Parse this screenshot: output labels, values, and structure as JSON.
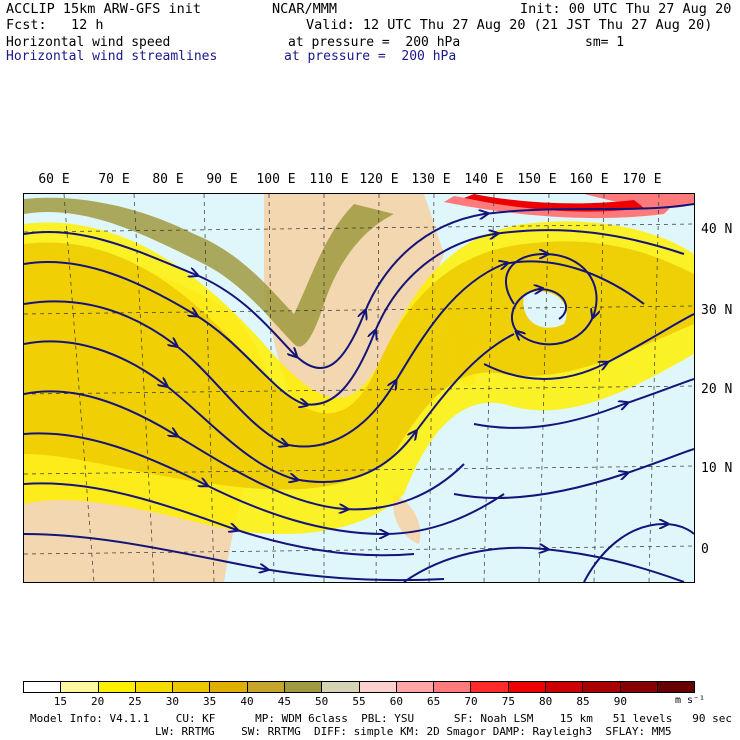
{
  "header": {
    "line1_left": "ACCLIP 15km ARW-GFS init",
    "line1_mid": "NCAR/MMM",
    "line1_right": "Init: 00 UTC Thu 27 Aug 20",
    "line2_left": "Fcst:   12 h",
    "line2_right": "Valid: 12 UTC Thu 27 Aug 20 (21 JST Thu 27 Aug 20)",
    "line3_left": "Horizontal wind speed",
    "line3_mid": "at pressure =  200 hPa",
    "line3_right": "sm= 1",
    "line4_left": "Horizontal wind streamlines",
    "line4_mid": "at pressure =  200 hPa"
  },
  "map": {
    "lon_labels": [
      "60 E",
      "70 E",
      "80 E",
      "90 E",
      "100 E",
      "110 E",
      "120 E",
      "130 E",
      "140 E",
      "150 E",
      "160 E",
      "170 E"
    ],
    "lat_labels": [
      "40 N",
      "30 N",
      "20 N",
      "10 N",
      "0"
    ],
    "colors": {
      "ocean": "#dff6fb",
      "land": "#f2d7b0",
      "streamline": "#14147a"
    }
  },
  "colorbar": {
    "labels": [
      "15",
      "20",
      "25",
      "30",
      "35",
      "40",
      "45",
      "50",
      "55",
      "60",
      "65",
      "70",
      "75",
      "80",
      "85",
      "90"
    ],
    "unit": "m s⁻¹",
    "colors": [
      "#ffffff",
      "#fff8a0",
      "#fff000",
      "#f6dd00",
      "#ecc800",
      "#ddb000",
      "#c5a52a",
      "#a09a40",
      "#d6d4b4",
      "#ffd0d0",
      "#ffa5a5",
      "#ff7b7b",
      "#ff2a2a",
      "#ee0000",
      "#cc0000",
      "#aa0000",
      "#880000",
      "#660000"
    ]
  },
  "footer": {
    "line1": "Model Info: V4.1.1    CU: KF      MP: WDM 6class  PBL: YSU      SF: Noah LSM    15 km   51 levels   90 sec",
    "line2": "LW: RRTMG    SW: RRTMG  DIFF: simple KM: 2D Smagor DAMP: Rayleigh3  SFLAY: MM5"
  }
}
